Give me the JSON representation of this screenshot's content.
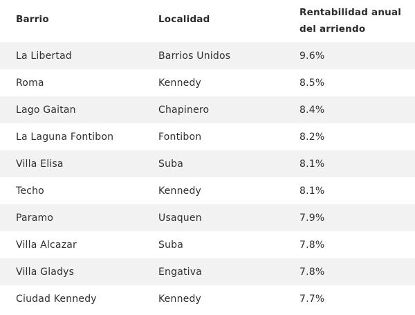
{
  "table": {
    "headers": {
      "barrio": "Barrio",
      "localidad": "Localidad",
      "rentabilidad_line1": "Rentabilidad anual",
      "rentabilidad_line2": "del arriendo"
    },
    "rows": [
      {
        "barrio": "La Libertad",
        "localidad": "Barrios Unidos",
        "rentabilidad": "9.6%"
      },
      {
        "barrio": "Roma",
        "localidad": "Kennedy",
        "rentabilidad": "8.5%"
      },
      {
        "barrio": "Lago Gaitan",
        "localidad": "Chapinero",
        "rentabilidad": "8.4%"
      },
      {
        "barrio": "La Laguna Fontibon",
        "localidad": "Fontibon",
        "rentabilidad": "8.2%"
      },
      {
        "barrio": "Villa Elisa",
        "localidad": "Suba",
        "rentabilidad": "8.1%"
      },
      {
        "barrio": "Techo",
        "localidad": "Kennedy",
        "rentabilidad": "8.1%"
      },
      {
        "barrio": "Paramo",
        "localidad": "Usaquen",
        "rentabilidad": "7.9%"
      },
      {
        "barrio": "Villa Alcazar",
        "localidad": "Suba",
        "rentabilidad": "7.8%"
      },
      {
        "barrio": "Villa Gladys",
        "localidad": "Engativa",
        "rentabilidad": "7.8%"
      },
      {
        "barrio": "Ciudad Kennedy",
        "localidad": "Kennedy",
        "rentabilidad": "7.7%"
      }
    ]
  },
  "colors": {
    "stripe": "#f2f2f2",
    "text": "#2f2f2f",
    "background": "#ffffff"
  }
}
